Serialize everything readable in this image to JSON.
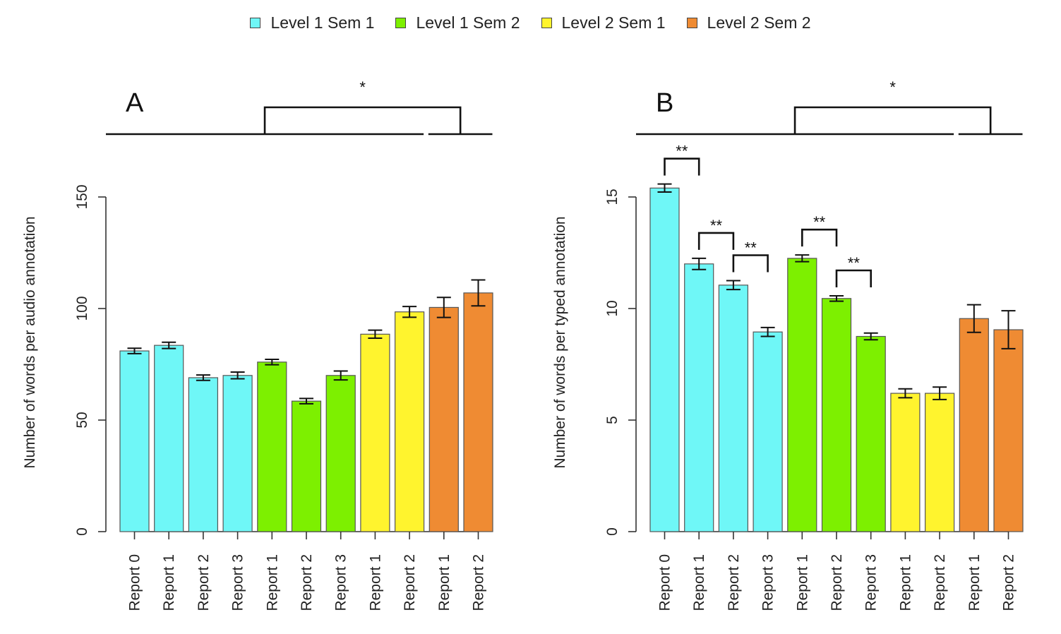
{
  "legend": [
    {
      "label": "Level 1 Sem 1",
      "color": "#6ff7f7"
    },
    {
      "label": "Level 1 Sem 2",
      "color": "#7df000"
    },
    {
      "label": "Level 2 Sem 1",
      "color": "#fff42e"
    },
    {
      "label": "Level 2 Sem 2",
      "color": "#ef8b33"
    }
  ],
  "chart_data": [
    {
      "type": "bar",
      "panel": "A",
      "title": "",
      "ylabel": "Number of words per audio annotation",
      "ylim": [
        0,
        150
      ],
      "yticks": [
        "0",
        "50",
        "100",
        "150"
      ],
      "categories": [
        "Report 0",
        "Report 1",
        "Report 2",
        "Report 3",
        "Report 1",
        "Report 2",
        "Report 3",
        "Report 1",
        "Report 2",
        "Report 1",
        "Report 2"
      ],
      "groups": [
        "Level 1 Sem 1",
        "Level 1 Sem 1",
        "Level 1 Sem 1",
        "Level 1 Sem 1",
        "Level 1 Sem 2",
        "Level 1 Sem 2",
        "Level 1 Sem 2",
        "Level 2 Sem 1",
        "Level 2 Sem 1",
        "Level 2 Sem 2",
        "Level 2 Sem 2"
      ],
      "values": [
        81,
        83.5,
        69,
        70,
        76,
        58.5,
        70,
        88.5,
        98.5,
        100.5,
        107
      ],
      "error": [
        1.2,
        1.4,
        1.2,
        1.5,
        1.2,
        1.2,
        2.0,
        1.8,
        2.4,
        4.5,
        5.8
      ],
      "significance": [
        {
          "label": "*",
          "from_bar": 0,
          "to_bar": 8,
          "bridge_to_bar": 9,
          "bridge_to_bar_end": 10
        }
      ]
    },
    {
      "type": "bar",
      "panel": "B",
      "title": "",
      "ylabel": "Number of words per typed annotation",
      "ylim": [
        0,
        15
      ],
      "yticks": [
        "0",
        "5",
        "10",
        "15"
      ],
      "categories": [
        "Report 0",
        "Report 1",
        "Report 2",
        "Report 3",
        "Report 1",
        "Report 2",
        "Report 3",
        "Report 1",
        "Report 2",
        "Report 1",
        "Report 2"
      ],
      "groups": [
        "Level 1 Sem 1",
        "Level 1 Sem 1",
        "Level 1 Sem 1",
        "Level 1 Sem 1",
        "Level 1 Sem 2",
        "Level 1 Sem 2",
        "Level 1 Sem 2",
        "Level 2 Sem 1",
        "Level 2 Sem 1",
        "Level 2 Sem 2",
        "Level 2 Sem 2"
      ],
      "values": [
        15.4,
        12.0,
        11.05,
        8.95,
        12.25,
        10.45,
        8.75,
        6.2,
        6.2,
        9.55,
        9.05
      ],
      "error": [
        0.18,
        0.25,
        0.2,
        0.2,
        0.15,
        0.12,
        0.15,
        0.2,
        0.28,
        0.62,
        0.85
      ],
      "significance": [
        {
          "label": "*",
          "from_bar": 0,
          "to_bar": 8,
          "bridge_to_bar": 9,
          "bridge_to_bar_end": 10
        },
        {
          "label": "**",
          "bar_a": 0,
          "bar_b": 1
        },
        {
          "label": "**",
          "bar_a": 1,
          "bar_b": 2
        },
        {
          "label": "**",
          "bar_a": 2,
          "bar_b": 3
        },
        {
          "label": "**",
          "bar_a": 4,
          "bar_b": 5
        },
        {
          "label": "**",
          "bar_a": 5,
          "bar_b": 6
        }
      ]
    }
  ]
}
